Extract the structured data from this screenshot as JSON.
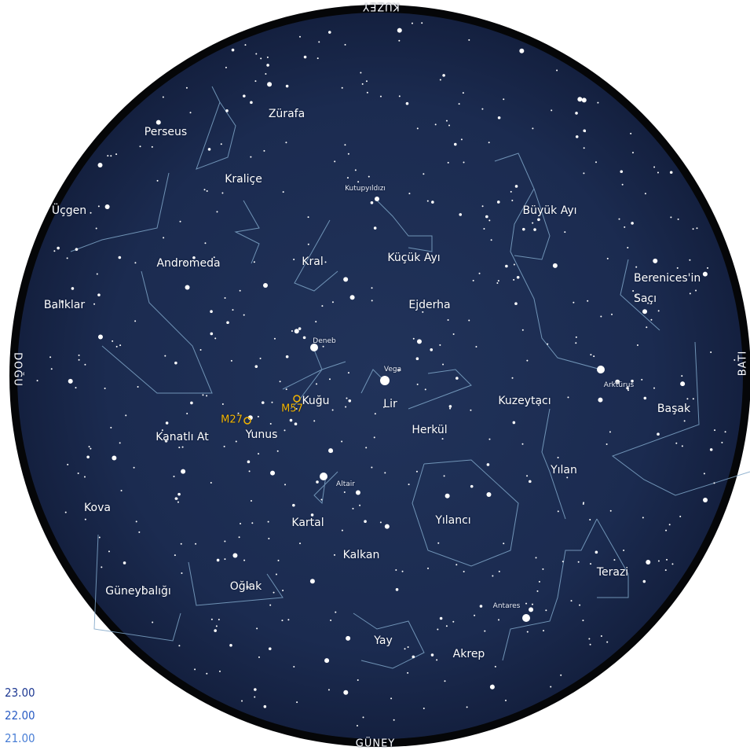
{
  "directions": {
    "north": "KUZEY",
    "south": "GÜNEY",
    "east": "DOĞU",
    "west": "BATI"
  },
  "constellations": [
    "Zürafa",
    "Perseus",
    "Kraliçe",
    "Üçgen",
    "Büyük Ayı",
    "Andromeda",
    "Kral",
    "Küçük Ayı",
    "Berenices'in Saçı",
    "Balıklar",
    "Ejderha",
    "Kuğu",
    "Lir",
    "Kuzeytacı",
    "Başak",
    "Kanatlı At",
    "Yunus",
    "Herkül",
    "Yılan",
    "Kova",
    "Kartal",
    "Yılancı",
    "Kalkan",
    "Terazi",
    "Güneybalığı",
    "Oğlak",
    "Yay",
    "Akrep"
  ],
  "stars": [
    "Kutupyıldızı",
    "Deneb",
    "Vega",
    "Arktürus",
    "Altair",
    "Antares"
  ],
  "deep_sky_objects": [
    "M27",
    "M57"
  ],
  "times": [
    "23.00",
    "22.00",
    "21.00"
  ]
}
